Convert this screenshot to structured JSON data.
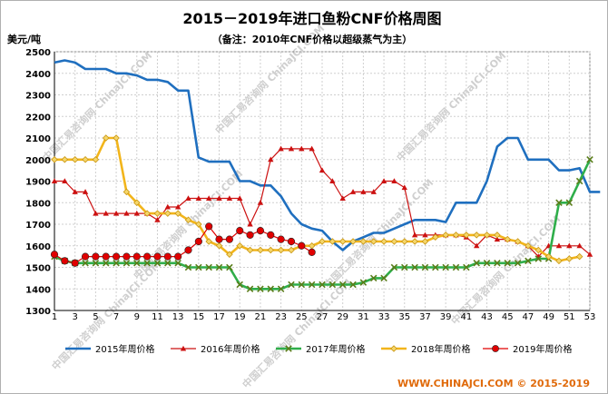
{
  "chart_data": {
    "type": "line",
    "title": "2015－2019年进口鱼粉CNF价格周图",
    "subtitle": "（备注：2010年CNF价格以超级蒸气为主）",
    "ylabel": "美元/吨",
    "xlabel": "",
    "ylim": [
      1300,
      2500
    ],
    "xlim": [
      1,
      53
    ],
    "yticks": [
      1300,
      1400,
      1500,
      1600,
      1700,
      1800,
      1900,
      2000,
      2100,
      2200,
      2300,
      2400,
      2500
    ],
    "xticks": [
      1,
      3,
      5,
      7,
      9,
      11,
      13,
      15,
      17,
      19,
      21,
      23,
      25,
      27,
      29,
      31,
      33,
      35,
      37,
      39,
      41,
      43,
      45,
      47,
      49,
      51,
      53
    ],
    "grid": true,
    "legend_position": "bottom",
    "footer": "WWW.CHINAJCI.COM © 2015-2019",
    "watermark": "中国汇易咨询网 ChinaJCI.COM",
    "series": [
      {
        "name": "2015年周价格",
        "color": "#1f6fbf",
        "marker": "none",
        "values": [
          2450,
          2460,
          2450,
          2420,
          2420,
          2420,
          2400,
          2400,
          2390,
          2370,
          2370,
          2360,
          2320,
          2320,
          2010,
          1990,
          1990,
          1990,
          1900,
          1900,
          1880,
          1880,
          1830,
          1750,
          1700,
          1680,
          1670,
          1620,
          1580,
          1620,
          1640,
          1660,
          1660,
          1680,
          1700,
          1720,
          1720,
          1720,
          1710,
          1800,
          1800,
          1800,
          1900,
          2060,
          2100,
          2100,
          2000,
          2000,
          2000,
          1950,
          1950,
          1960,
          1850,
          1850
        ]
      },
      {
        "name": "2016年周价格",
        "color": "#cc1111",
        "marker": "triangle",
        "values": [
          1900,
          1900,
          1850,
          1850,
          1750,
          1750,
          1750,
          1750,
          1750,
          1750,
          1720,
          1780,
          1780,
          1820,
          1820,
          1820,
          1820,
          1820,
          1820,
          1700,
          1800,
          2000,
          2050,
          2050,
          2050,
          2050,
          1950,
          1900,
          1820,
          1850,
          1850,
          1850,
          1900,
          1900,
          1870,
          1650,
          1650,
          1650,
          1650,
          1650,
          1640,
          1600,
          1650,
          1630,
          1630,
          1620,
          1600,
          1550,
          1600,
          1600,
          1600,
          1600,
          1560
        ]
      },
      {
        "name": "2017年周价格",
        "color": "#2fae4a",
        "marker": "x",
        "values": [
          1550,
          1530,
          1520,
          1520,
          1520,
          1520,
          1520,
          1520,
          1520,
          1520,
          1520,
          1520,
          1520,
          1500,
          1500,
          1500,
          1500,
          1500,
          1420,
          1400,
          1400,
          1400,
          1400,
          1420,
          1420,
          1420,
          1420,
          1420,
          1420,
          1420,
          1430,
          1450,
          1450,
          1500,
          1500,
          1500,
          1500,
          1500,
          1500,
          1500,
          1500,
          1520,
          1520,
          1520,
          1520,
          1520,
          1530,
          1540,
          1540,
          1800,
          1800,
          1900,
          2000
        ]
      },
      {
        "name": "2018年周价格",
        "color": "#f2b51b",
        "marker": "diamond",
        "values": [
          2000,
          2000,
          2000,
          2000,
          2000,
          2100,
          2100,
          1850,
          1800,
          1750,
          1750,
          1750,
          1750,
          1720,
          1700,
          1620,
          1600,
          1560,
          1600,
          1580,
          1580,
          1580,
          1580,
          1580,
          1600,
          1600,
          1620,
          1620,
          1620,
          1620,
          1620,
          1620,
          1620,
          1620,
          1620,
          1620,
          1620,
          1640,
          1650,
          1650,
          1650,
          1650,
          1650,
          1650,
          1630,
          1620,
          1600,
          1580,
          1550,
          1530,
          1540,
          1550
        ]
      },
      {
        "name": "2019年周价格",
        "color": "#e00000",
        "marker": "circle",
        "values": [
          1560,
          1530,
          1520,
          1550,
          1550,
          1550,
          1550,
          1550,
          1550,
          1550,
          1550,
          1550,
          1550,
          1580,
          1620,
          1690,
          1630,
          1630,
          1670,
          1650,
          1670,
          1650,
          1630,
          1620,
          1600,
          1570
        ]
      }
    ]
  }
}
